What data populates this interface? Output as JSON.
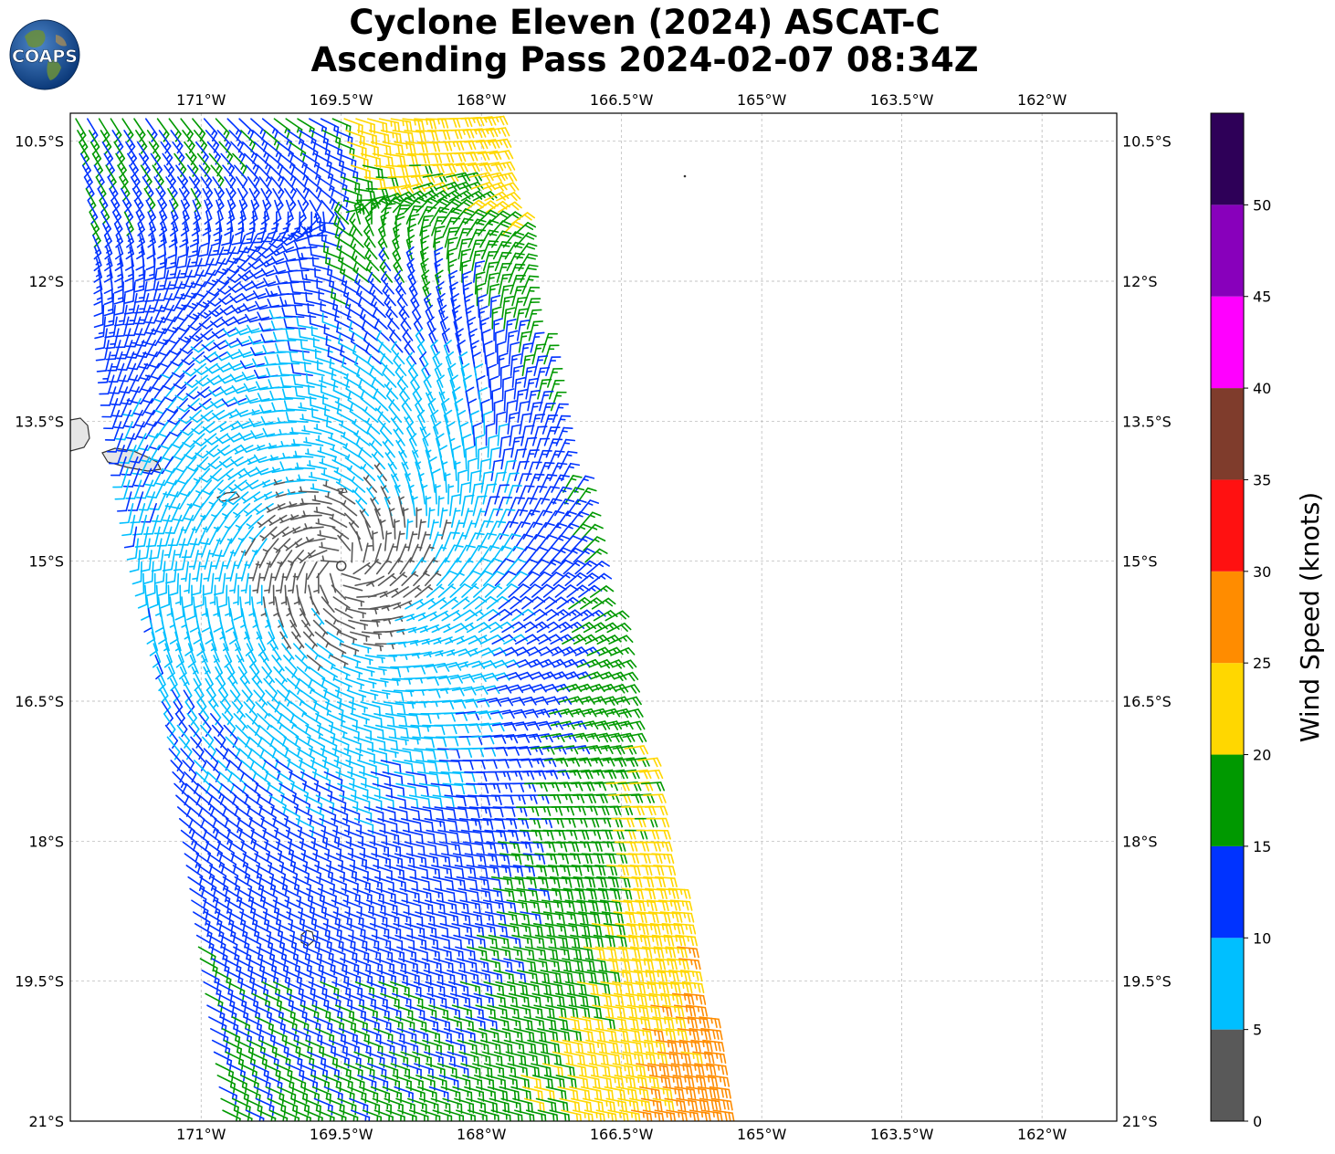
{
  "logo": {
    "text": "COAPS"
  },
  "chart_data": {
    "type": "wind-barb-map",
    "title": "Cyclone Eleven (2024) ASCAT-C",
    "subtitle": "Ascending Pass 2024-02-07 08:34Z",
    "xlim": [
      -172.4,
      -161.2
    ],
    "ylim": [
      -21.0,
      -10.2
    ],
    "x_ticks": [
      -171.0,
      -169.5,
      -168.0,
      -166.5,
      -165.0,
      -163.5,
      -162.0
    ],
    "x_tick_labels": [
      "171°W",
      "169.5°W",
      "168°W",
      "166.5°W",
      "165°W",
      "163.5°W",
      "162°W"
    ],
    "y_ticks": [
      -10.5,
      -12.0,
      -13.5,
      -15.0,
      -16.5,
      -18.0,
      -19.5,
      -21.0
    ],
    "y_tick_labels": [
      "10.5°S",
      "12°S",
      "13.5°S",
      "15°S",
      "16.5°S",
      "18°S",
      "19.5°S",
      "21°S"
    ],
    "grid": true,
    "center_marker": {
      "lon": -169.5,
      "lat": -15.05
    },
    "colorbar": {
      "label": "Wind Speed (knots)",
      "bounds": [
        0,
        5,
        10,
        15,
        20,
        25,
        30,
        35,
        40,
        45,
        50,
        55
      ],
      "tick_labels": [
        "0",
        "5",
        "10",
        "15",
        "20",
        "25",
        "30",
        "35",
        "40",
        "45",
        "50"
      ],
      "colors": [
        "#595959",
        "#00bfff",
        "#0033ff",
        "#009900",
        "#ffd700",
        "#ff8c00",
        "#ff1111",
        "#7f3c2c",
        "#ff00ff",
        "#8800bb",
        "#2e0058"
      ]
    },
    "swath": {
      "top_edges": [
        -172.4,
        -167.95
      ],
      "bottom_edges": [
        -170.8,
        -165.4
      ],
      "lat_range": [
        -21.0,
        -10.2
      ]
    },
    "wind_field": {
      "center_lon": -169.5,
      "center_lat": -15.05,
      "rotation": "clockwise",
      "spacing_deg": 0.125
    }
  }
}
